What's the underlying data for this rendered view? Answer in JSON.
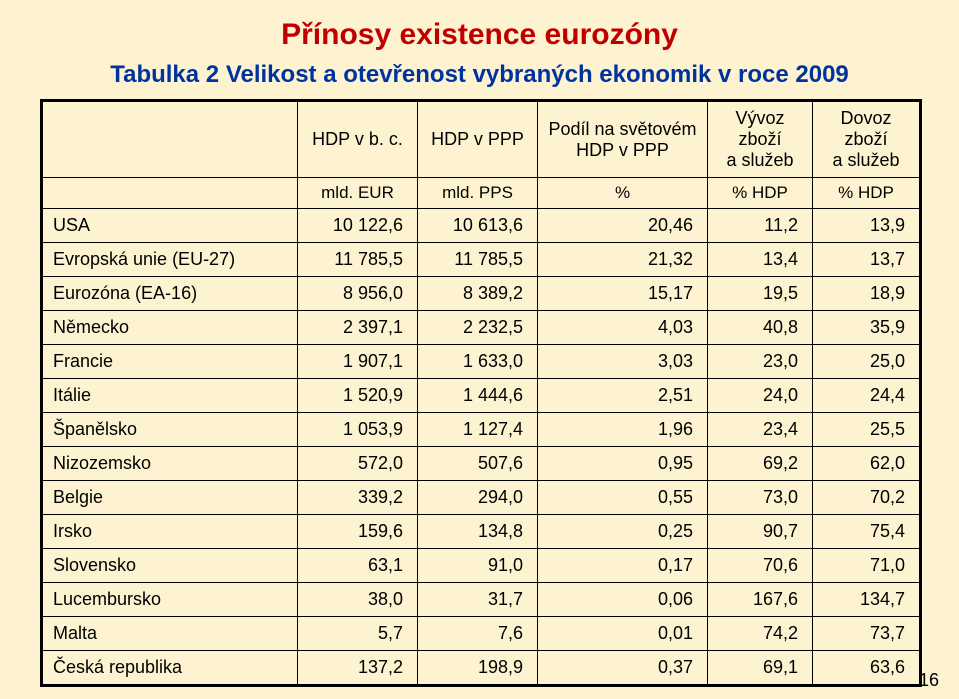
{
  "colors": {
    "background": "#fdf3d1",
    "title_color": "#c00000",
    "subtitle_color": "#0033a0",
    "text_color": "#000000",
    "border_color": "#000000",
    "page_num_color": "#000000"
  },
  "typography": {
    "title_fontsize": 30,
    "subtitle_fontsize": 24,
    "header_fontsize": 18,
    "body_fontsize": 18
  },
  "title": "Přínosy existence eurozóny",
  "subtitle": "Tabulka 2 Velikost a otevřenost vybraných ekonomik v roce 2009",
  "page_number": "16",
  "table": {
    "border_width_outer": 3,
    "border_width_inner": 1,
    "headers_row1": [
      "",
      "HDP v b. c.",
      "HDP v PPP",
      "Podíl na světovém\nHDP v PPP",
      "Vývoz zboží\na služeb",
      "Dovoz zboží\na služeb"
    ],
    "headers_row2": [
      "",
      "mld. EUR",
      "mld. PPS",
      "%",
      "% HDP",
      "% HDP"
    ],
    "columns_align": [
      "left",
      "right",
      "right",
      "right",
      "right",
      "right"
    ],
    "rows": [
      [
        "USA",
        "10 122,6",
        "10 613,6",
        "20,46",
        "11,2",
        "13,9"
      ],
      [
        "Evropská unie (EU-27)",
        "11 785,5",
        "11 785,5",
        "21,32",
        "13,4",
        "13,7"
      ],
      [
        "Eurozóna (EA-16)",
        "8 956,0",
        "8 389,2",
        "15,17",
        "19,5",
        "18,9"
      ],
      [
        "Německo",
        "2 397,1",
        "2 232,5",
        "4,03",
        "40,8",
        "35,9"
      ],
      [
        "Francie",
        "1 907,1",
        "1 633,0",
        "3,03",
        "23,0",
        "25,0"
      ],
      [
        "Itálie",
        "1 520,9",
        "1 444,6",
        "2,51",
        "24,0",
        "24,4"
      ],
      [
        "Španělsko",
        "1 053,9",
        "1 127,4",
        "1,96",
        "23,4",
        "25,5"
      ],
      [
        "Nizozemsko",
        "572,0",
        "507,6",
        "0,95",
        "69,2",
        "62,0"
      ],
      [
        "Belgie",
        "339,2",
        "294,0",
        "0,55",
        "73,0",
        "70,2"
      ],
      [
        "Irsko",
        "159,6",
        "134,8",
        "0,25",
        "90,7",
        "75,4"
      ],
      [
        "Slovensko",
        "63,1",
        "91,0",
        "0,17",
        "70,6",
        "71,0"
      ],
      [
        "Lucembursko",
        "38,0",
        "31,7",
        "0,06",
        "167,6",
        "134,7"
      ],
      [
        "Malta",
        "5,7",
        "7,6",
        "0,01",
        "74,2",
        "73,7"
      ],
      [
        "Česká republika",
        "137,2",
        "198,9",
        "0,37",
        "69,1",
        "63,6"
      ]
    ]
  }
}
